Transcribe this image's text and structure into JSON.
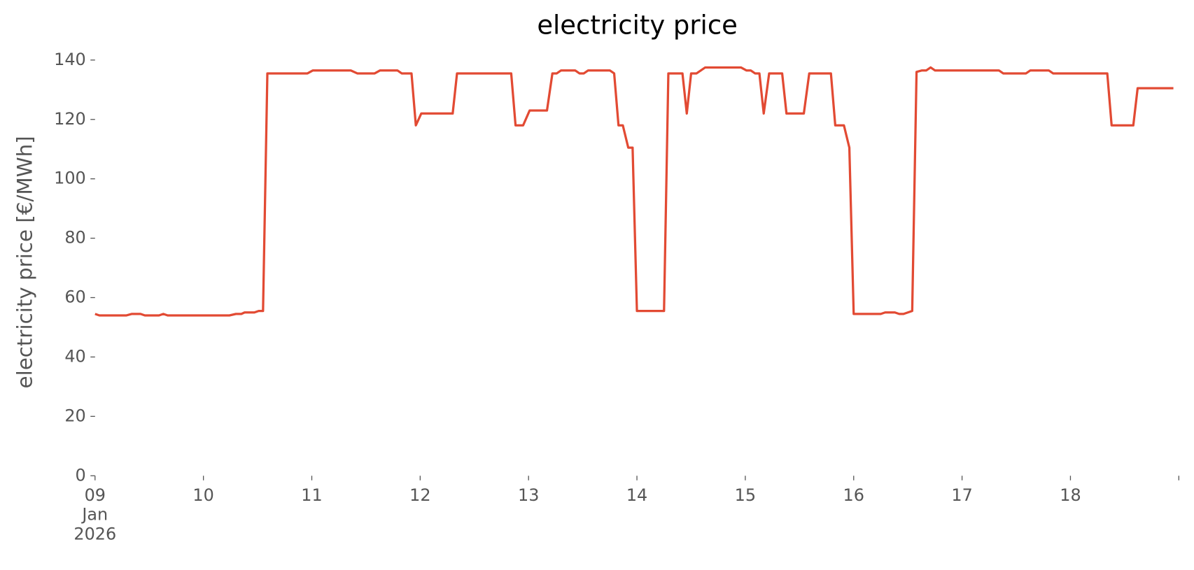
{
  "chart_data": {
    "type": "line",
    "title": "electricity price",
    "ylabel": "electricity price [€/MWh]",
    "x": [
      9.0,
      9.04,
      9.29,
      9.34,
      9.42,
      9.46,
      9.59,
      9.63,
      9.67,
      10.24,
      10.3,
      10.35,
      10.38,
      10.47,
      10.51,
      10.55,
      10.59,
      10.96,
      11.01,
      11.36,
      11.42,
      11.58,
      11.63,
      11.79,
      11.83,
      11.92,
      11.96,
      12.01,
      12.3,
      12.34,
      12.84,
      12.88,
      12.95,
      13.01,
      13.17,
      13.22,
      13.26,
      13.3,
      13.43,
      13.47,
      13.51,
      13.55,
      13.75,
      13.79,
      13.83,
      13.87,
      13.92,
      13.96,
      14.0,
      14.25,
      14.29,
      14.42,
      14.46,
      14.5,
      14.55,
      14.63,
      14.96,
      15.01,
      15.05,
      15.09,
      15.13,
      15.17,
      15.22,
      15.34,
      15.38,
      15.54,
      15.59,
      15.79,
      15.83,
      15.91,
      15.96,
      16.0,
      16.25,
      16.29,
      16.38,
      16.42,
      16.46,
      16.54,
      16.58,
      16.63,
      16.67,
      16.71,
      16.75,
      17.34,
      17.38,
      17.59,
      17.63,
      17.8,
      17.84,
      18.34,
      18.38,
      18.58,
      18.62,
      18.95
    ],
    "series": [
      {
        "name": "electricity price",
        "color": "#e24a33",
        "values": [
          54.5,
          54,
          54,
          54.5,
          54.5,
          54,
          54,
          54.5,
          54,
          54,
          54.5,
          54.5,
          55,
          55,
          55.5,
          55.5,
          135.5,
          135.5,
          136.5,
          136.5,
          135.5,
          135.5,
          136.5,
          136.5,
          135.5,
          135.5,
          118,
          122,
          122,
          135.5,
          135.5,
          118,
          118,
          123,
          123,
          135.5,
          135.5,
          136.5,
          136.5,
          135.5,
          135.5,
          136.5,
          136.5,
          135.5,
          118,
          118,
          110.5,
          110.5,
          55.5,
          55.5,
          135.5,
          135.5,
          122,
          135.5,
          135.5,
          137.5,
          137.5,
          136.5,
          136.5,
          135.5,
          135.5,
          122,
          135.5,
          135.5,
          122,
          122,
          135.5,
          135.5,
          118,
          118,
          110.5,
          54.5,
          54.5,
          55,
          55,
          54.5,
          54.5,
          55.5,
          136,
          136.5,
          136.5,
          137.5,
          136.5,
          136.5,
          135.5,
          135.5,
          136.5,
          136.5,
          135.5,
          135.5,
          118,
          118,
          130.5,
          130.5
        ]
      }
    ],
    "xlim": [
      9,
      19
    ],
    "xticks": [
      {
        "value": 9,
        "label": "09\nJan\n2026"
      },
      10,
      11,
      12,
      13,
      14,
      15,
      16,
      17,
      18,
      {
        "value": 19,
        "label": null
      }
    ],
    "ylim": [
      0,
      140
    ],
    "yticks": [
      0,
      20,
      40,
      60,
      80,
      100,
      120,
      140
    ]
  }
}
